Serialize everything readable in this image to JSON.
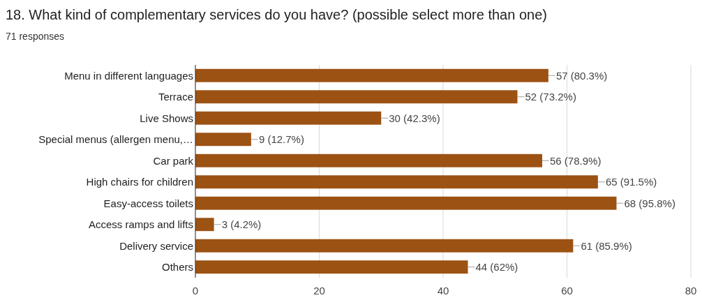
{
  "chart_data": {
    "type": "bar",
    "orientation": "horizontal",
    "title": "18. What kind of complementary services do you have? (possible select more than one)",
    "subtitle": "71 responses",
    "categories": [
      "Menu in different languages",
      "Terrace",
      "Live Shows",
      "Special menus (allergen menu,…",
      "Car park",
      "High chairs for children",
      "Easy-access toilets",
      "Access ramps and lifts",
      "Delivery service",
      "Others"
    ],
    "values": [
      57,
      52,
      30,
      9,
      56,
      65,
      68,
      3,
      61,
      44
    ],
    "value_labels": [
      "57 (80.3%)",
      "52 (73.2%)",
      "30 (42.3%)",
      "9 (12.7%)",
      "56 (78.9%)",
      "65 (91.5%)",
      "68 (95.8%)",
      "3 (4.2%)",
      "61 (85.9%)",
      "44 (62%)"
    ],
    "color": "#9c5213",
    "xlim": [
      0,
      80
    ],
    "xticks": [
      0,
      20,
      40,
      60,
      80
    ],
    "grid": "x"
  }
}
